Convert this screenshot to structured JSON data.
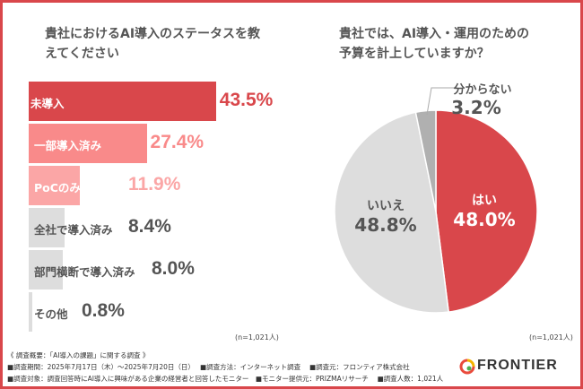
{
  "chart_data": [
    {
      "type": "bar",
      "orientation": "horizontal",
      "title": "貴社におけるAI導入のステータスを教えてください",
      "categories": [
        "未導入",
        "一部導入済み",
        "PoCのみ実施",
        "全社で導入済み",
        "部門横断で導入済み",
        "その他"
      ],
      "values": [
        43.5,
        27.4,
        11.9,
        8.4,
        8.0,
        0.8
      ],
      "value_labels": [
        "43.5%",
        "27.4%",
        "11.9%",
        "8.4%",
        "8.0%",
        "0.8%"
      ],
      "colors": [
        "#d9474b",
        "#f98a8a",
        "#fba6a6",
        "#dddddd",
        "#dddddd",
        "#dddddd"
      ],
      "label_colors": [
        "#ffffff",
        "#ffffff",
        "#ffffff",
        "#555555",
        "#555555",
        "#555555"
      ],
      "value_colors": [
        "#d9474b",
        "#f98a8a",
        "#fba6a6",
        "#555555",
        "#555555",
        "#555555"
      ],
      "note": "(n=1,021人)"
    },
    {
      "type": "pie",
      "title": "貴社では、AI導入・運用のための予算を計上していますか？",
      "categories": [
        "はい",
        "いいえ",
        "分からない"
      ],
      "values": [
        48.0,
        48.8,
        3.2
      ],
      "value_labels": [
        "48.0%",
        "48.8%",
        "3.2%"
      ],
      "colors": [
        "#d9474b",
        "#dddddd",
        "#b0b0b0"
      ],
      "note": "(n=1,021人)"
    }
  ],
  "footer": {
    "line1": "《 調査概要：「AI導入の課題」に関する調査 》",
    "line2": "■調査期間：2025年7月17日（木）～2025年7月20日（日）　 ■調査方法：インターネット調査　 ■調査元：フロンティア株式会社",
    "line3": "■調査対象：調査回答時にAI導入に興味がある企業の経営者と回答したモニター　■モニター提供元：PRIZMAリサーチ　 ■調査人数：1,021人",
    "logo": "FRONTIER"
  }
}
